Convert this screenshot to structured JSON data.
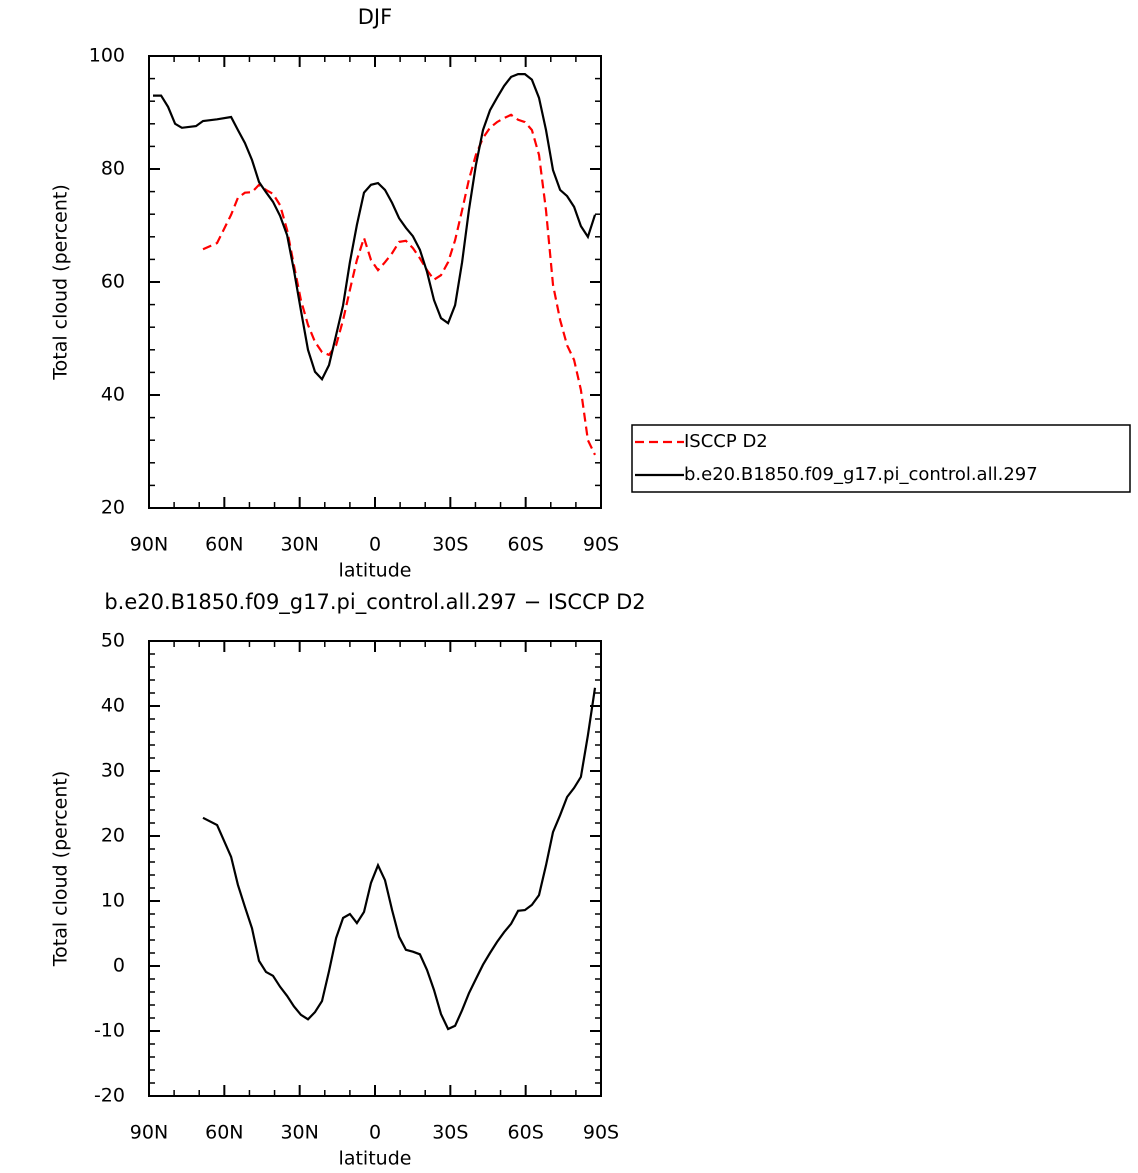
{
  "chart_data": [
    {
      "type": "line",
      "title": "DJF",
      "xlabel": "latitude",
      "ylabel": "Total cloud (percent)",
      "x": [
        88.4,
        85.2,
        82.4,
        79.6,
        76.9,
        71.3,
        68.5,
        62.9,
        57.3,
        54.6,
        51.8,
        49.0,
        46.2,
        43.4,
        40.6,
        37.8,
        35.0,
        32.3,
        29.5,
        26.7,
        23.9,
        21.1,
        18.3,
        15.5,
        12.7,
        10.0,
        7.2,
        4.4,
        1.6,
        -1.2,
        -4.0,
        -6.8,
        -9.6,
        -12.3,
        -15.1,
        -17.9,
        -20.7,
        -23.5,
        -26.3,
        -29.1,
        -31.9,
        -34.7,
        -37.4,
        -40.2,
        -43.0,
        -45.8,
        -48.6,
        -51.4,
        -54.2,
        -57.0,
        -59.7,
        -62.5,
        -65.3,
        -68.1,
        -70.9,
        -73.7,
        -76.5,
        -79.3,
        -82.0,
        -84.8,
        -87.6
      ],
      "series": [
        {
          "name": "ISCCP D2",
          "color": "#ff0000",
          "line_style": "dashed",
          "values": [
            null,
            null,
            null,
            null,
            null,
            null,
            65.8,
            66.9,
            71.9,
            74.9,
            75.8,
            75.9,
            77.2,
            76.3,
            75.6,
            73.6,
            69.2,
            63.0,
            56.8,
            52.4,
            49.4,
            47.6,
            47.1,
            48.8,
            53.3,
            58.6,
            63.9,
            67.8,
            63.9,
            62.1,
            63.5,
            65.1,
            67.1,
            67.3,
            66.0,
            64.2,
            62.1,
            60.4,
            61.2,
            63.5,
            67.4,
            72.7,
            78.1,
            82.5,
            85.5,
            87.3,
            88.3,
            89.0,
            89.6,
            88.7,
            88.3,
            86.9,
            82.5,
            72.7,
            59.5,
            53.3,
            48.8,
            46.2,
            40.9,
            32.0,
            29.4
          ]
        },
        {
          "name": "b.e20.B1850.f09_g17.pi_control.all.297",
          "color": "#000000",
          "line_style": "solid",
          "values": [
            93.0,
            93.0,
            91.0,
            88.0,
            87.3,
            87.6,
            88.5,
            88.8,
            89.2,
            86.9,
            84.6,
            81.6,
            77.7,
            75.9,
            74.2,
            71.7,
            68.3,
            62.1,
            55.0,
            48.0,
            44.1,
            42.8,
            45.3,
            50.6,
            55.9,
            63.5,
            70.1,
            75.8,
            77.2,
            77.5,
            76.3,
            74.0,
            71.3,
            69.6,
            68.1,
            65.7,
            61.8,
            56.8,
            53.6,
            52.7,
            55.9,
            63.5,
            72.7,
            80.7,
            86.9,
            90.4,
            92.6,
            94.7,
            96.3,
            96.8,
            96.8,
            95.8,
            92.6,
            86.9,
            79.8,
            76.3,
            75.2,
            73.3,
            69.9,
            68.0,
            71.9
          ]
        }
      ],
      "xlim": [
        90,
        -90
      ],
      "xticks": [
        {
          "value": 90,
          "label": "90N"
        },
        {
          "value": 60,
          "label": "60N"
        },
        {
          "value": 30,
          "label": "30N"
        },
        0,
        {
          "value": -30,
          "label": "30S"
        },
        {
          "value": -60,
          "label": "60S"
        },
        {
          "value": -90,
          "label": "90S"
        }
      ],
      "ylim": [
        20,
        100
      ],
      "yticks": [
        20,
        40,
        60,
        80,
        100
      ],
      "legend": "outside-right"
    },
    {
      "type": "line",
      "title": "b.e20.B1850.f09_g17.pi_control.all.297 − ISCCP D2",
      "xlabel": "latitude",
      "ylabel": "Total cloud (percent)",
      "x": [
        68.5,
        62.9,
        57.3,
        54.6,
        51.8,
        49.0,
        46.2,
        43.4,
        40.6,
        37.8,
        35.0,
        32.3,
        29.5,
        26.7,
        23.9,
        21.1,
        18.3,
        15.5,
        12.7,
        10.0,
        7.2,
        4.4,
        1.6,
        -1.2,
        -4.0,
        -6.8,
        -9.6,
        -12.3,
        -15.1,
        -17.9,
        -20.7,
        -23.5,
        -26.3,
        -29.1,
        -31.9,
        -34.7,
        -37.4,
        -40.2,
        -43.0,
        -45.8,
        -48.6,
        -51.4,
        -54.2,
        -57.0,
        -59.7,
        -62.5,
        -65.3,
        -68.1,
        -70.9,
        -73.7,
        -76.5,
        -79.3,
        -82.0,
        -84.8,
        -87.6
      ],
      "series": [
        {
          "color": "#000000",
          "line_style": "solid",
          "values": [
            22.8,
            21.7,
            16.8,
            12.5,
            9.1,
            5.8,
            0.8,
            -0.9,
            -1.5,
            -3.2,
            -4.6,
            -6.2,
            -7.5,
            -8.2,
            -7.1,
            -5.4,
            -0.8,
            4.3,
            7.4,
            8.0,
            6.6,
            8.3,
            12.8,
            15.5,
            13.2,
            8.6,
            4.5,
            2.5,
            2.2,
            1.8,
            -0.6,
            -3.7,
            -7.4,
            -9.7,
            -9.2,
            -6.8,
            -4.2,
            -2.0,
            0.2,
            2.0,
            3.7,
            5.2,
            6.5,
            8.5,
            8.6,
            9.4,
            10.9,
            15.5,
            20.6,
            23.2,
            26.0,
            27.4,
            29.1,
            35.5,
            42.8
          ]
        }
      ],
      "xlim": [
        90,
        -90
      ],
      "xticks": [
        {
          "value": 90,
          "label": "90N"
        },
        {
          "value": 60,
          "label": "60N"
        },
        {
          "value": 30,
          "label": "30N"
        },
        0,
        {
          "value": -30,
          "label": "30S"
        },
        {
          "value": -60,
          "label": "60S"
        },
        {
          "value": -90,
          "label": "90S"
        }
      ],
      "ylim": [
        -20,
        50
      ],
      "yticks": [
        -20,
        -10,
        0,
        10,
        20,
        30,
        40,
        50
      ]
    }
  ]
}
